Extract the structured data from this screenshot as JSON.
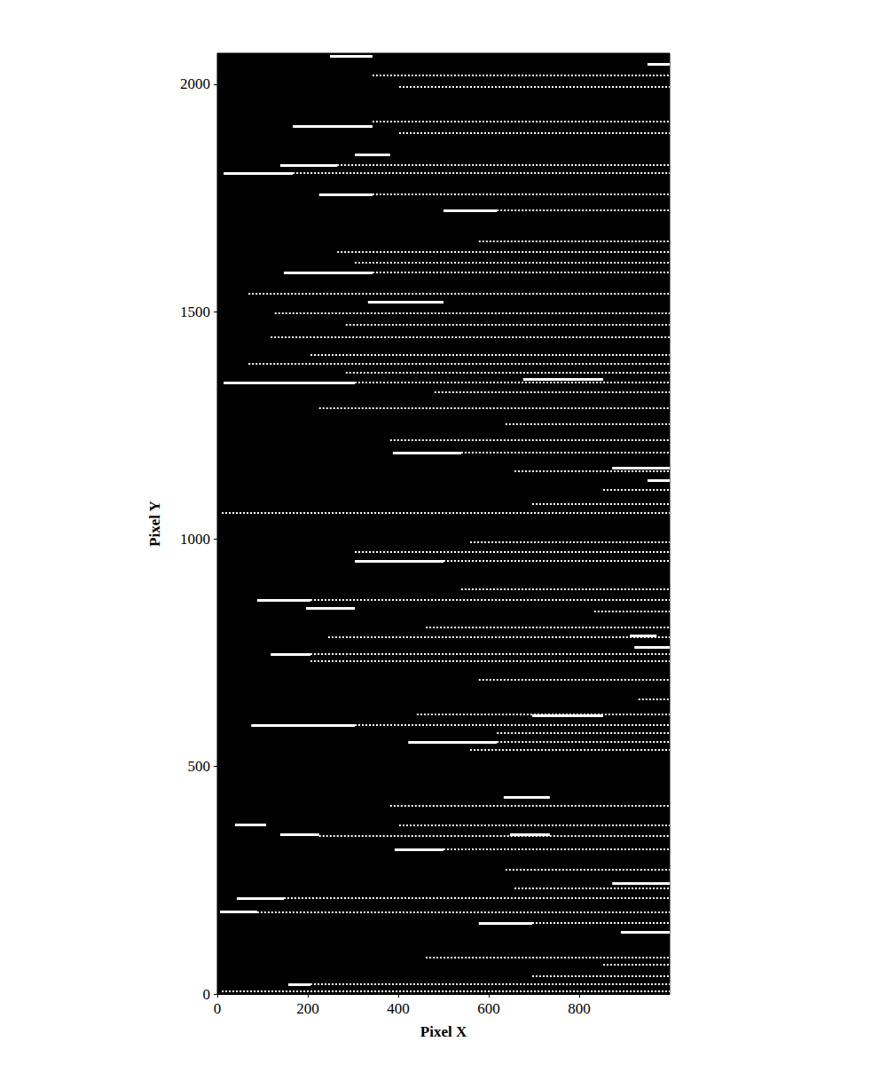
{
  "chart_data": {
    "type": "segments",
    "x_label": "Pixel X",
    "y_label": "Pixel Y",
    "xlim": [
      0,
      1000
    ],
    "ylim": [
      0,
      2068
    ],
    "xticks": [
      0,
      200,
      400,
      600,
      800
    ],
    "yticks": [
      0,
      500,
      1000,
      1500,
      2000
    ],
    "grid": false,
    "series": [
      {
        "line_style": "solid",
        "color": "#ffffff",
        "segments": [
          [
            249,
            343,
            2062
          ],
          [
            167,
            343,
            1908
          ],
          [
            14,
            167,
            1805
          ],
          [
            139,
            265,
            1822
          ],
          [
            304,
            382,
            1846
          ],
          [
            225,
            343,
            1758
          ],
          [
            500,
            618,
            1723
          ],
          [
            147,
            343,
            1586
          ],
          [
            333,
            500,
            1522
          ],
          [
            14,
            304,
            1344
          ],
          [
            676,
            853,
            1352
          ],
          [
            388,
            539,
            1190
          ],
          [
            951,
            1000,
            1130
          ],
          [
            304,
            500,
            952
          ],
          [
            88,
            206,
            866
          ],
          [
            118,
            206,
            747
          ],
          [
            196,
            304,
            849
          ],
          [
            696,
            853,
            613
          ],
          [
            75,
            304,
            591
          ],
          [
            422,
            618,
            554
          ],
          [
            633,
            735,
            433
          ],
          [
            39,
            108,
            373
          ],
          [
            139,
            225,
            351
          ],
          [
            647,
            735,
            351
          ],
          [
            392,
            500,
            318
          ],
          [
            43,
            147,
            211
          ],
          [
            6,
            88,
            180
          ],
          [
            578,
            696,
            156
          ],
          [
            157,
            206,
            21
          ],
          [
            951,
            1000,
            2045
          ],
          [
            873,
            1000,
            1157
          ],
          [
            922,
            1000,
            763
          ],
          [
            912,
            971,
            788
          ],
          [
            873,
            1000,
            244
          ],
          [
            892,
            1000,
            137
          ]
        ]
      },
      {
        "line_style": "dotted",
        "color": "#ffffff",
        "segments": [
          [
            343,
            1000,
            2020
          ],
          [
            402,
            1000,
            1995
          ],
          [
            343,
            1000,
            1918
          ],
          [
            402,
            1000,
            1893
          ],
          [
            265,
            1000,
            1822
          ],
          [
            167,
            1000,
            1805
          ],
          [
            343,
            1000,
            1758
          ],
          [
            618,
            1000,
            1723
          ],
          [
            578,
            1000,
            1655
          ],
          [
            265,
            1000,
            1631
          ],
          [
            304,
            1000,
            1608
          ],
          [
            343,
            1000,
            1586
          ],
          [
            69,
            1000,
            1540
          ],
          [
            127,
            1000,
            1497
          ],
          [
            284,
            1000,
            1471
          ],
          [
            118,
            1000,
            1444
          ],
          [
            206,
            1000,
            1405
          ],
          [
            69,
            1000,
            1385
          ],
          [
            284,
            1000,
            1366
          ],
          [
            304,
            1000,
            1344
          ],
          [
            480,
            1000,
            1323
          ],
          [
            225,
            1000,
            1288
          ],
          [
            637,
            1000,
            1253
          ],
          [
            382,
            1000,
            1218
          ],
          [
            539,
            1000,
            1190
          ],
          [
            657,
            1000,
            1149
          ],
          [
            853,
            1000,
            1108
          ],
          [
            696,
            1000,
            1077
          ],
          [
            10,
            1000,
            1058
          ],
          [
            559,
            1000,
            993
          ],
          [
            304,
            1000,
            973
          ],
          [
            500,
            1000,
            952
          ],
          [
            539,
            1000,
            890
          ],
          [
            206,
            1000,
            866
          ],
          [
            833,
            1000,
            841
          ],
          [
            461,
            1000,
            806
          ],
          [
            245,
            1000,
            784
          ],
          [
            206,
            1000,
            747
          ],
          [
            206,
            1000,
            732
          ],
          [
            578,
            1000,
            691
          ],
          [
            931,
            1000,
            648
          ],
          [
            441,
            1000,
            615
          ],
          [
            304,
            1000,
            591
          ],
          [
            618,
            1000,
            574
          ],
          [
            618,
            1000,
            554
          ],
          [
            559,
            1000,
            537
          ],
          [
            382,
            1000,
            414
          ],
          [
            402,
            1000,
            371
          ],
          [
            225,
            1000,
            347
          ],
          [
            500,
            1000,
            318
          ],
          [
            637,
            1000,
            273
          ],
          [
            657,
            1000,
            232
          ],
          [
            147,
            1000,
            211
          ],
          [
            88,
            1000,
            180
          ],
          [
            696,
            1000,
            156
          ],
          [
            461,
            1000,
            80
          ],
          [
            853,
            1000,
            64
          ],
          [
            696,
            1000,
            39
          ],
          [
            206,
            1000,
            21
          ],
          [
            10,
            1000,
            6
          ]
        ]
      }
    ]
  }
}
